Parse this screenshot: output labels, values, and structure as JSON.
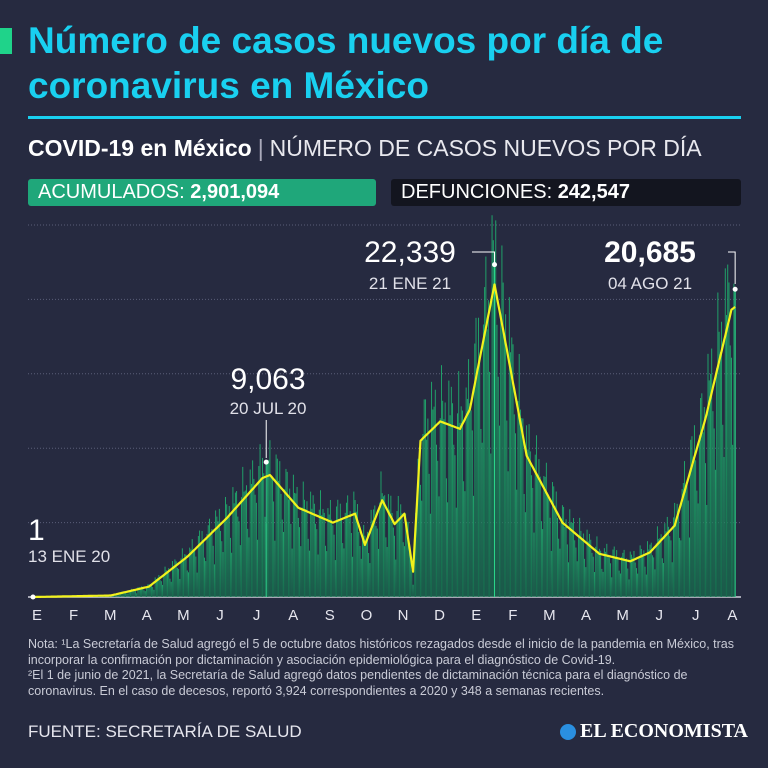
{
  "header": {
    "title": "Número de casos nuevos por día de coronavirus en México",
    "accent_color": "#1fd38a",
    "title_color": "#19d0f0"
  },
  "subtitle": {
    "bold": "COVID-19 en México",
    "separator": "|",
    "light": "NÚMERO DE CASOS NUEVOS POR DÍA"
  },
  "stats": {
    "acumulados_label": "ACUMULADOS:",
    "acumulados_value": "2,901,094",
    "defunciones_label": "DEFUNCIONES:",
    "defunciones_value": "242,547"
  },
  "chart_data": {
    "type": "bar",
    "title": "Número de casos nuevos por día",
    "x_tick_labels": [
      "E",
      "F",
      "M",
      "A",
      "M",
      "J",
      "J",
      "A",
      "S",
      "O",
      "N",
      "D",
      "E",
      "F",
      "M",
      "A",
      "M",
      "J",
      "J",
      "A"
    ],
    "ylim": [
      0,
      25000
    ],
    "grid": true,
    "start_date": "2020-01-13",
    "end_date": "2021-08-04",
    "smoothed_trend": [
      [
        "2020-01-13",
        0
      ],
      [
        "2020-03-16",
        100
      ],
      [
        "2020-04-16",
        700
      ],
      [
        "2020-05-17",
        2700
      ],
      [
        "2020-06-18",
        5300
      ],
      [
        "2020-07-17",
        8000
      ],
      [
        "2020-07-23",
        8200
      ],
      [
        "2020-08-15",
        6000
      ],
      [
        "2020-09-12",
        5000
      ],
      [
        "2020-09-30",
        5600
      ],
      [
        "2020-10-08",
        3500
      ],
      [
        "2020-10-22",
        6500
      ],
      [
        "2020-11-01",
        4900
      ],
      [
        "2020-11-09",
        5600
      ],
      [
        "2020-11-16",
        1700
      ],
      [
        "2020-11-22",
        10500
      ],
      [
        "2020-12-08",
        11800
      ],
      [
        "2020-12-24",
        11300
      ],
      [
        "2021-01-01",
        12600
      ],
      [
        "2021-01-09",
        16000
      ],
      [
        "2021-01-21",
        21000
      ],
      [
        "2021-01-29",
        17500
      ],
      [
        "2021-02-16",
        9500
      ],
      [
        "2021-03-17",
        5000
      ],
      [
        "2021-04-16",
        2900
      ],
      [
        "2021-05-11",
        2400
      ],
      [
        "2021-05-27",
        3000
      ],
      [
        "2021-06-16",
        4800
      ],
      [
        "2021-07-11",
        12000
      ],
      [
        "2021-08-01",
        19300
      ],
      [
        "2021-08-04",
        19500
      ]
    ],
    "annotations": [
      {
        "date": "2020-01-13",
        "value": "1",
        "label": "13 ENE 20",
        "y": 1
      },
      {
        "date": "2020-07-20",
        "value": "9,063",
        "label": "20 JUL 20",
        "y": 9063
      },
      {
        "date": "2021-01-21",
        "value": "22,339",
        "label": "21 ENE 21",
        "y": 22339
      },
      {
        "date": "2021-08-04",
        "value": "20,685",
        "label": "04 AGO 21",
        "y": 20685
      }
    ],
    "bar_color": "#1fa36a",
    "trend_color": "#f2f21c"
  },
  "notes": {
    "line1": "Nota: ¹La Secretaría de Salud agregó el 5 de octubre datos históricos rezagados desde el inicio de la pandemia en México, tras incorporar la confirmación por dictaminación y asociación epidemiológica para el diagnóstico de Covid-19.",
    "line2": "²El 1 de junio de 2021, la Secretaría de Salud agregó datos pendientes de dictaminación técnica para el diagnóstico de coronavirus. En el caso de decesos, reportó 3,924 correspondientes a 2020 y 348 a semanas recientes."
  },
  "footer": {
    "source": "FUENTE: SECRETARÍA DE SALUD",
    "logo": "EL ECONOMISTA"
  }
}
